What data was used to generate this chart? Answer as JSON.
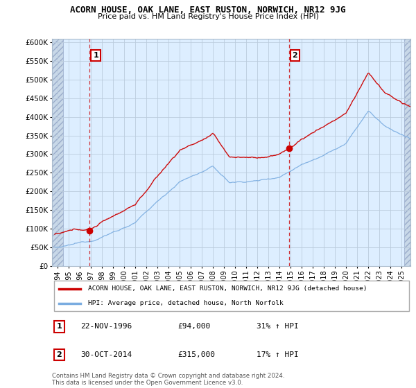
{
  "title": "ACORN HOUSE, OAK LANE, EAST RUSTON, NORWICH, NR12 9JG",
  "subtitle": "Price paid vs. HM Land Registry's House Price Index (HPI)",
  "ylabel_ticks": [
    "£0",
    "£50K",
    "£100K",
    "£150K",
    "£200K",
    "£250K",
    "£300K",
    "£350K",
    "£400K",
    "£450K",
    "£500K",
    "£550K",
    "£600K"
  ],
  "ytick_vals": [
    0,
    50000,
    100000,
    150000,
    200000,
    250000,
    300000,
    350000,
    400000,
    450000,
    500000,
    550000,
    600000
  ],
  "ylim": [
    0,
    610000
  ],
  "xlim_start": 1993.5,
  "xlim_end": 2025.8,
  "xtick_years": [
    1994,
    1995,
    1996,
    1997,
    1998,
    1999,
    2000,
    2001,
    2002,
    2003,
    2004,
    2005,
    2006,
    2007,
    2008,
    2009,
    2010,
    2011,
    2012,
    2013,
    2014,
    2015,
    2016,
    2017,
    2018,
    2019,
    2020,
    2021,
    2022,
    2023,
    2024,
    2025
  ],
  "transaction1": {
    "date": "22-NOV-1996",
    "price": 94000,
    "year": 1996.9,
    "label": "1",
    "hpi_pct": "31% ↑ HPI"
  },
  "transaction2": {
    "date": "30-OCT-2014",
    "price": 315000,
    "year": 2014.83,
    "label": "2",
    "hpi_pct": "17% ↑ HPI"
  },
  "legend_line1": "ACORN HOUSE, OAK LANE, EAST RUSTON, NORWICH, NR12 9JG (detached house)",
  "legend_line2": "HPI: Average price, detached house, North Norfolk",
  "footer": "Contains HM Land Registry data © Crown copyright and database right 2024.\nThis data is licensed under the Open Government Licence v3.0.",
  "red_color": "#cc0000",
  "blue_color": "#7aace0",
  "chart_bg": "#ddeeff",
  "hatch_color": "#c0c8d8",
  "grid_color": "#bbccdd",
  "dashed_line_color": "#cc0000",
  "box_label_color": "#cc0000",
  "hatch_left_end": 1994.5,
  "hatch_right_start": 2025.25
}
